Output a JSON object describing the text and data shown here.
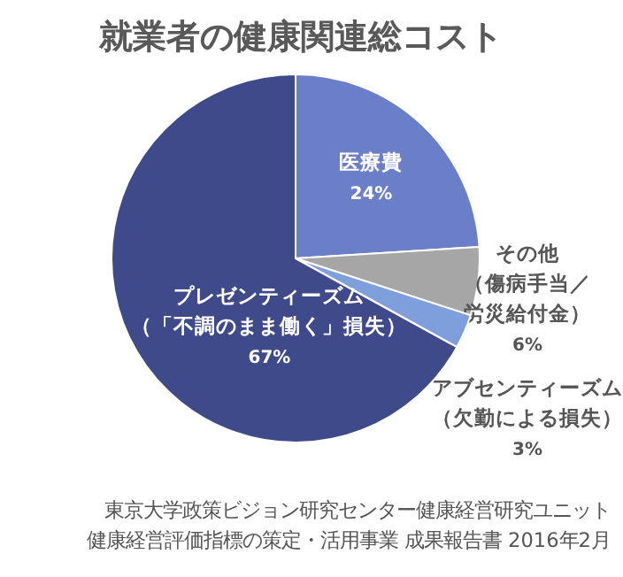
{
  "chart_data": {
    "type": "pie",
    "title": "就業者の健康関連総コスト",
    "categories": [
      "医療費",
      "その他（傷病手当／労災給付金）",
      "アブセンティーズム（欠勤による損失）",
      "プレゼンティーズム（「不調のまま働く」損失）"
    ],
    "values": [
      24,
      6,
      3,
      67
    ],
    "colors": [
      "#6b7fc9",
      "#a6a6a6",
      "#7f9fdc",
      "#3f4a8a"
    ],
    "value_labels": [
      "24%",
      "6%",
      "3%",
      "67%"
    ],
    "annotations": [
      "東京大学政策ビジョン研究センター健康経営研究ユニット",
      "健康経営評価指標の策定・活用事業 成果報告書 2016年2月"
    ]
  }
}
